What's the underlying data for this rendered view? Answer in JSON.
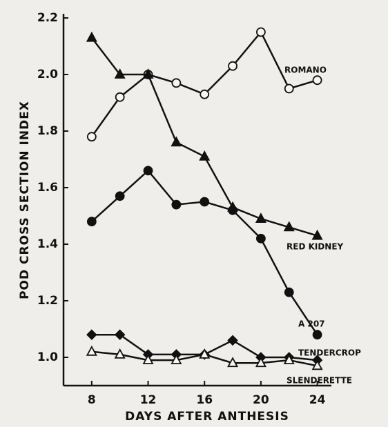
{
  "chart_data": {
    "type": "line",
    "xlabel": "DAYS AFTER ANTHESIS",
    "ylabel": "POD CROSS SECTION INDEX",
    "x": [
      8,
      10,
      12,
      14,
      16,
      18,
      20,
      22,
      24
    ],
    "xlim": [
      6,
      25
    ],
    "xticks": [
      8,
      12,
      16,
      20,
      24
    ],
    "ylim": [
      0.9,
      2.2
    ],
    "yticks": [
      {
        "value": 1.0,
        "label": "1.0"
      },
      1.2,
      1.4,
      1.6,
      1.8,
      {
        "value": 2.0,
        "label": "2.0"
      },
      2.2
    ],
    "grid": false,
    "series": [
      {
        "name": "ROMANO",
        "color": "#111111",
        "marker": "circle-open",
        "values": [
          1.78,
          1.92,
          2.0,
          1.97,
          1.93,
          2.03,
          2.15,
          1.95,
          1.98
        ]
      },
      {
        "name": "RED KIDNEY",
        "color": "#111111",
        "marker": "triangle-filled",
        "values": [
          2.13,
          2.0,
          2.0,
          1.76,
          1.71,
          1.53,
          1.49,
          1.46,
          1.43
        ]
      },
      {
        "name": "A 207",
        "color": "#111111",
        "marker": "circle-filled",
        "values": [
          1.48,
          1.57,
          1.66,
          1.54,
          1.55,
          1.52,
          1.42,
          1.23,
          1.08
        ]
      },
      {
        "name": "TENDERCROP",
        "color": "#111111",
        "marker": "diamond-filled",
        "values": [
          1.08,
          1.08,
          1.01,
          1.01,
          1.01,
          1.06,
          1.0,
          1.0,
          0.99
        ]
      },
      {
        "name": "SLENDERETTE",
        "color": "#111111",
        "marker": "triangle-open",
        "values": [
          1.02,
          1.01,
          0.99,
          0.99,
          1.01,
          0.98,
          0.98,
          0.99,
          0.97
        ]
      }
    ]
  }
}
